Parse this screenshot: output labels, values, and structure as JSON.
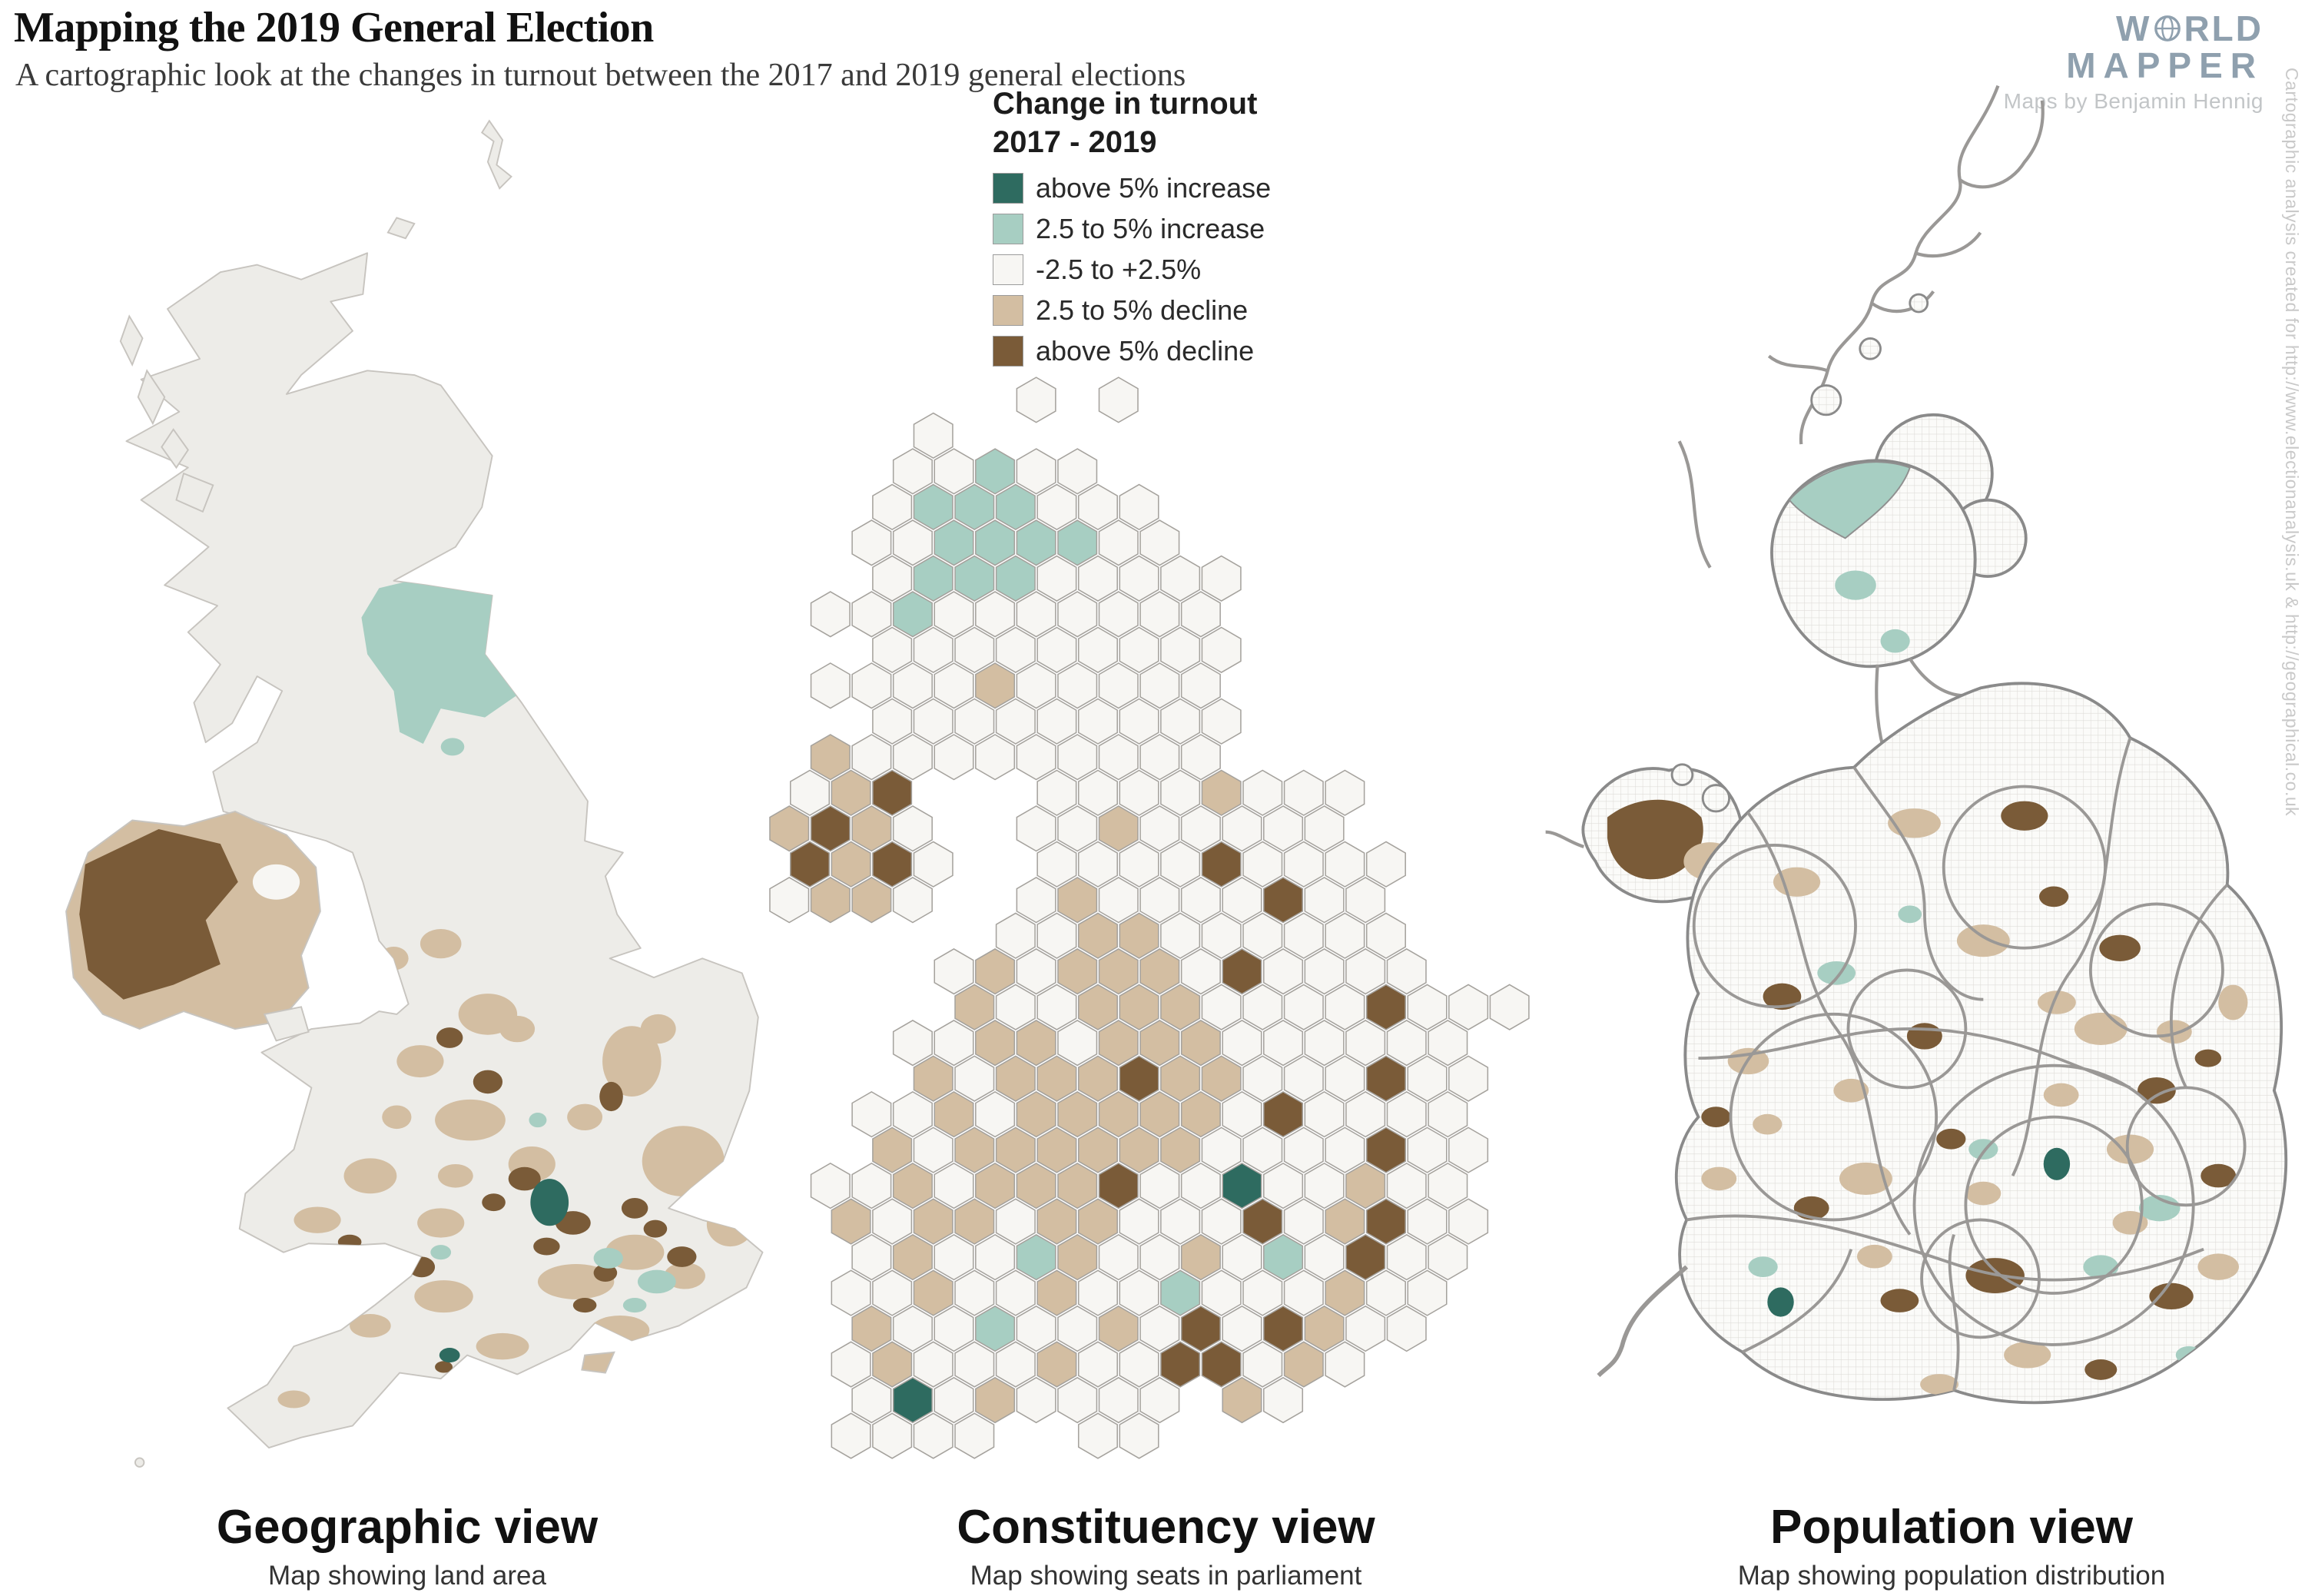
{
  "page": {
    "title": "Mapping the 2019 General Election",
    "subtitle": "A cartographic look at the changes in turnout between the 2017 and 2019 general elections"
  },
  "branding": {
    "line1_prefix": "W",
    "line1_suffix": "RLD",
    "line2": "MAPPER",
    "credit": "Maps by Benjamin Hennig"
  },
  "side_note": "Cartographic analysis created for http://www.electionanalysis.uk & http://geographical.co.uk",
  "legend": {
    "title_line1": "Change in turnout",
    "title_line2": "2017 - 2019",
    "items": [
      {
        "label": "above 5% increase",
        "color": "#2E6B60"
      },
      {
        "label": "2.5 to 5% increase",
        "color": "#A7CEC2"
      },
      {
        "label": "-2.5 to +2.5%",
        "color": "#F7F6F3"
      },
      {
        "label": "2.5 to 5% decline",
        "color": "#D3BEA2"
      },
      {
        "label": "above 5% decline",
        "color": "#7A5B38"
      }
    ]
  },
  "views": [
    {
      "title": "Geographic view",
      "subtitle": "Map showing land area"
    },
    {
      "title": "Constituency view",
      "subtitle": "Map showing seats in parliament"
    },
    {
      "title": "Population view",
      "subtitle": "Map showing population distribution"
    }
  ],
  "hex_map": {
    "palette": {
      "w": "#F7F6F3",
      "t": "#D3BEA2",
      "b": "#7A5B38",
      "g": "#A7CEC2",
      "d": "#2E6B60"
    },
    "rows": [
      {
        "o": 6,
        "c": "w.w"
      },
      {
        "o": 3,
        "c": "w"
      },
      {
        "o": 3,
        "c": "wwgww"
      },
      {
        "o": 2,
        "c": "wgggwww"
      },
      {
        "o": 2,
        "c": "wwggggww"
      },
      {
        "o": 2,
        "c": "wgggwwwww"
      },
      {
        "o": 1,
        "c": "wwgwwwwwww"
      },
      {
        "o": 2,
        "c": "wwwwwwwww"
      },
      {
        "o": 1,
        "c": "wwwwtwwwww"
      },
      {
        "o": 2,
        "c": "wwwwwwwww"
      },
      {
        "o": 1,
        "c": "twwwwwwwww"
      },
      {
        "o": 0,
        "c": "wtb...wwwwtwww"
      },
      {
        "o": 0,
        "c": "tbtw..wwtwwwww"
      },
      {
        "o": 0,
        "c": "btbw..wwwwbwwww"
      },
      {
        "o": 0,
        "c": "wttw..wtwwwwbww"
      },
      {
        "o": 5,
        "c": "wwttwwwwww"
      },
      {
        "o": 4,
        "c": "wtwtttwbwwww"
      },
      {
        "o": 4,
        "c": "twwtttwwwwbwww"
      },
      {
        "o": 3,
        "c": "wwttwtttwwwwww"
      },
      {
        "o": 3,
        "c": "twtttbttwwwbww"
      },
      {
        "o": 2,
        "c": "wwtwtttttwbwwww"
      },
      {
        "o": 2,
        "c": "twttttttwwwwbww"
      },
      {
        "o": 1,
        "c": "wwtwtttbwwdwwtww"
      },
      {
        "o": 1,
        "c": "twttwttwwwbwtbww"
      },
      {
        "o": 2,
        "c": "wtwwgtwwtwgwbww"
      },
      {
        "o": 1,
        "c": "wwtwwtwwgwwwtww"
      },
      {
        "o": 2,
        "c": "twwgwwtwbwbtww"
      },
      {
        "o": 1,
        "c": "wtwwwtwwbbwtw"
      },
      {
        "o": 2,
        "c": "wdwtwwww.tw"
      },
      {
        "o": 1,
        "c": "wwww..ww"
      }
    ]
  }
}
